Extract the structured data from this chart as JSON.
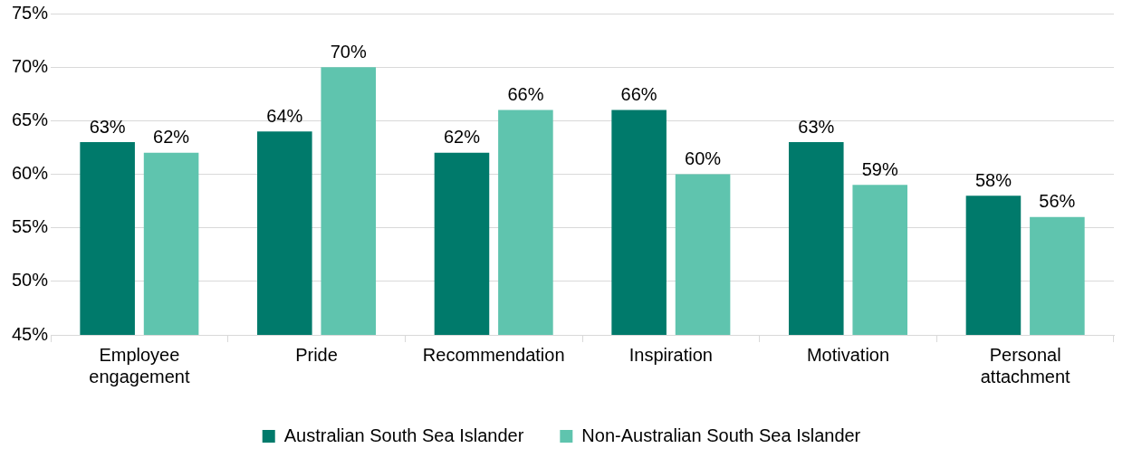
{
  "chart_data": {
    "type": "bar",
    "categories": [
      "Employee engagement",
      "Pride",
      "Recommendation",
      "Inspiration",
      "Motivation",
      "Personal attachment"
    ],
    "series": [
      {
        "name": "Australian South Sea Islander",
        "color": "#007a6b",
        "values": [
          63,
          64,
          62,
          66,
          63,
          58
        ],
        "value_labels": [
          "63%",
          "64%",
          "62%",
          "66%",
          "63%",
          "58%"
        ]
      },
      {
        "name": "Non-Australian South Sea Islander",
        "color": "#5fc4ae",
        "values": [
          62,
          70,
          66,
          60,
          59,
          56
        ],
        "value_labels": [
          "62%",
          "70%",
          "66%",
          "60%",
          "59%",
          "56%"
        ]
      }
    ],
    "ylim": [
      45,
      75
    ],
    "yticks": [
      {
        "value": 45,
        "label": "45%"
      },
      {
        "value": 50,
        "label": "50%"
      },
      {
        "value": 55,
        "label": "55%"
      },
      {
        "value": 60,
        "label": "60%"
      },
      {
        "value": 65,
        "label": "65%"
      },
      {
        "value": 70,
        "label": "70%"
      },
      {
        "value": 75,
        "label": "75%"
      }
    ],
    "grid": "y",
    "legend": "bottom"
  }
}
